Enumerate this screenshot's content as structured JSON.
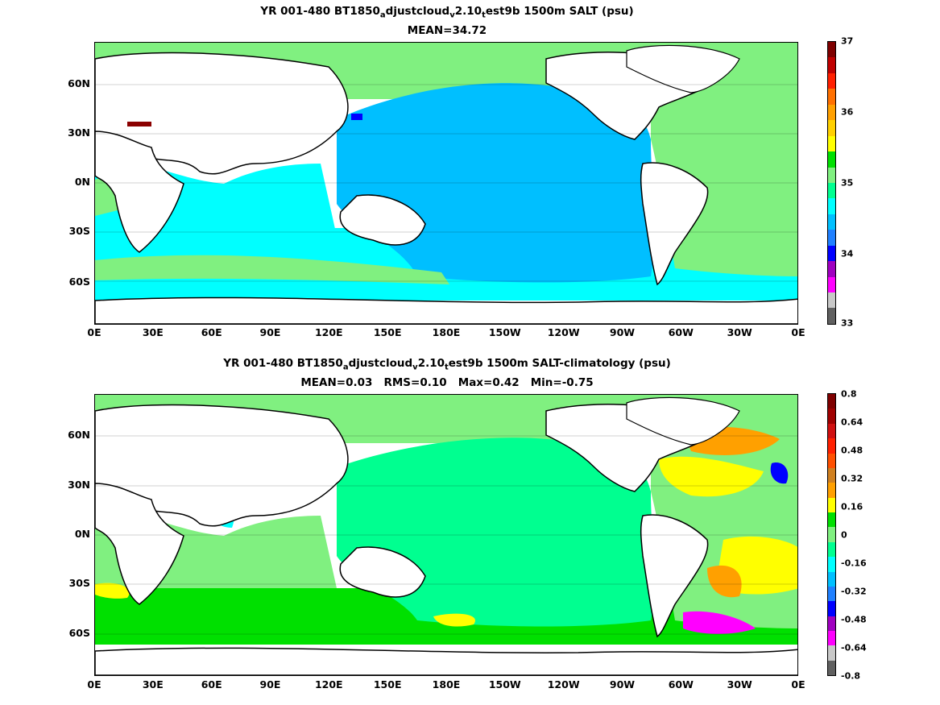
{
  "panels": [
    {
      "title_parts": [
        "YR 001-480 BT1850",
        "a",
        "djustcloud",
        "v",
        "2.10",
        "t",
        "est9b 1500m SALT (psu)"
      ],
      "subtitle": "MEAN=34.72",
      "colorbar_labels": [
        "37",
        "36",
        "35",
        "34",
        "33"
      ],
      "colorbar_colors": [
        "#7f0000",
        "#c00000",
        "#ff2000",
        "#ff7000",
        "#ffa000",
        "#ffd000",
        "#ffff00",
        "#00e000",
        "#80f080",
        "#00ff90",
        "#00ffff",
        "#00c0ff",
        "#2080ff",
        "#0000ff",
        "#a000c0",
        "#ff00ff",
        "#c8c8c8",
        "#606060"
      ],
      "colors": {
        "ocean": "#00bfff",
        "indian": "#00ffff",
        "southern": "#00ffff",
        "atlantic": "#80f080",
        "arctic": "#80f080",
        "medsea": "#8b0000",
        "japan_sea": "#0000ff"
      }
    },
    {
      "title_parts": [
        "YR 001-480 BT1850",
        "a",
        "djustcloud",
        "v",
        "2.10",
        "t",
        "est9b 1500m SALT-climatology (psu)"
      ],
      "subtitle": "MEAN=0.03   RMS=0.10   Max=0.42   Min=-0.75",
      "colorbar_labels": [
        "0.8",
        "0.64",
        "0.48",
        "0.32",
        "0.16",
        "0",
        "-0.16",
        "-0.32",
        "-0.48",
        "-0.64",
        "-0.8"
      ],
      "colorbar_colors": [
        "#7f0000",
        "#a00000",
        "#d01010",
        "#ff2000",
        "#ff5000",
        "#d08020",
        "#ffa000",
        "#ffff00",
        "#00e000",
        "#80f080",
        "#00ff90",
        "#00ffff",
        "#00c0ff",
        "#2080ff",
        "#0000ff",
        "#a000c0",
        "#ff00ff",
        "#c8c8c8",
        "#606060"
      ],
      "colors": {
        "ocean": "#00ff90",
        "indian": "#00ffff",
        "southern": "#00e000",
        "atlantic": "#80f080",
        "arctic": "#80f080",
        "anomaly_pos": "#ffff00",
        "anomaly_warm": "#ffa000",
        "anomaly_neg": "#0000ff"
      }
    }
  ],
  "lat_labels": [
    "60N",
    "30N",
    "0N",
    "30S",
    "60S"
  ],
  "lon_labels": [
    "0E",
    "30E",
    "60E",
    "90E",
    "120E",
    "150E",
    "180E",
    "150W",
    "120W",
    "90W",
    "60W",
    "30W",
    "0E"
  ]
}
